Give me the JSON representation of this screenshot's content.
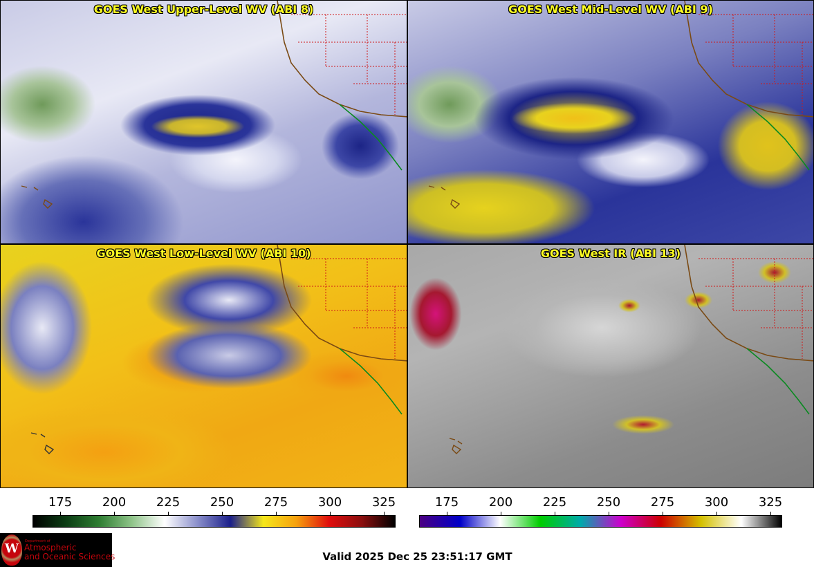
{
  "panels": [
    {
      "title": "GOES West Upper-Level WV (ABI 8)"
    },
    {
      "title": "GOES West Mid-Level WV (ABI 9)"
    },
    {
      "title": "GOES West Low-Level WV (ABI 10)"
    },
    {
      "title": "GOES West IR (ABI 13)"
    }
  ],
  "colorbars": [
    {
      "name": "water-vapor",
      "ticks": [
        "175",
        "200",
        "225",
        "250",
        "275",
        "300",
        "325"
      ],
      "colors": [
        "#000000",
        "#0b3d14",
        "#2e7d32",
        "#8fc489",
        "#ffffff",
        "#8a8fcb",
        "#1b1f8a",
        "#f5e71b",
        "#f6a10e",
        "#e00d0d",
        "#8a0e0e",
        "#000000"
      ]
    },
    {
      "name": "infrared",
      "ticks": [
        "175",
        "200",
        "225",
        "250",
        "275",
        "300",
        "325"
      ],
      "colors": [
        "#4b0082",
        "#0000c8",
        "#ffffff",
        "#00cc00",
        "#00aaaa",
        "#cc00cc",
        "#cc0000",
        "#d4c000",
        "#ffffff",
        "#000000"
      ]
    }
  ],
  "logo": {
    "department": "Department of",
    "line1": "Atmospheric",
    "line2": "and Oceanic Sciences",
    "seal_letter": "W"
  },
  "valid_time": "Valid 2025 Dec 25 23:51:17 GMT"
}
